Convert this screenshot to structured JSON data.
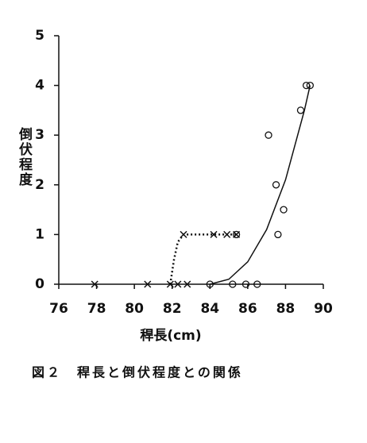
{
  "chart_data": {
    "type": "scatter",
    "title": "図２　稈長と倒伏程度との関係",
    "x_label": "稈長(cm)",
    "y_label": "倒伏程度",
    "xlim": [
      76,
      90
    ],
    "xticks": [
      76,
      78,
      80,
      82,
      84,
      86,
      88,
      90
    ],
    "ylim": [
      0,
      5
    ],
    "yticks": [
      0,
      1,
      2,
      3,
      4,
      5
    ],
    "grid": false,
    "series": [
      {
        "marker": "cross",
        "color": "#111111",
        "x": [
          77.9,
          80.7,
          81.9,
          82.3,
          82.8,
          82.6,
          84.2,
          84.9,
          85.4
        ],
        "values": [
          0,
          0,
          0,
          0,
          0,
          1,
          1,
          1,
          1
        ]
      },
      {
        "marker": "circle",
        "color": "#111111",
        "x": [
          84.0,
          85.2,
          85.9,
          86.5,
          85.4,
          87.6,
          87.9,
          87.5,
          87.1,
          88.8,
          89.1,
          89.3
        ],
        "values": [
          0,
          0,
          0,
          0,
          1,
          1,
          1.5,
          2,
          3,
          3.5,
          4,
          4
        ]
      },
      {
        "line_style": "solid",
        "color": "#111111",
        "x": [
          84.0,
          85.0,
          86.0,
          87.0,
          88.0,
          89.0,
          89.3
        ],
        "values": [
          0,
          0.1,
          0.45,
          1.1,
          2.1,
          3.5,
          4
        ]
      },
      {
        "line_style": "dotted",
        "color": "#111111",
        "x": [
          81.9,
          82.1,
          82.3,
          82.6,
          85.4
        ],
        "values": [
          0,
          0.5,
          0.85,
          1,
          1
        ]
      }
    ]
  }
}
